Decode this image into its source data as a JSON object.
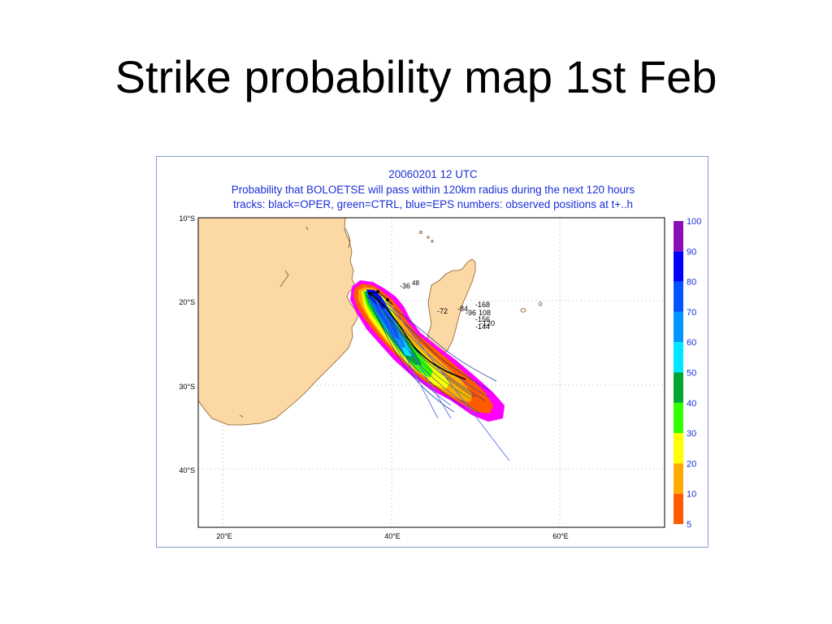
{
  "slide": {
    "title": "Strike probability map 1st Feb"
  },
  "map": {
    "date_line": "20060201 12 UTC",
    "description": "Probability that BOLOETSE will pass within 120km radius during the next 120 hours",
    "tracks_line": "tracks: black=OPER, green=CTRL, blue=EPS numbers: observed positions at t+..h",
    "lat_labels": [
      "10°S",
      "20°S",
      "30°S",
      "40°S"
    ],
    "lon_labels": [
      "20°E",
      "40°E",
      "60°E"
    ],
    "hour_labels": [
      "-36",
      "48",
      "-72",
      "-84",
      "-96",
      "108",
      "-168",
      "-156",
      "-144",
      "-120"
    ],
    "colors": {
      "land": "#fcd9a4",
      "coast": "#8a5a2b",
      "accent": "#1a2fd6"
    }
  },
  "legend": {
    "levels": [
      {
        "label": "100",
        "color": "#8a0fb8"
      },
      {
        "label": "90",
        "color": "#0000ff"
      },
      {
        "label": "80",
        "color": "#0055ff"
      },
      {
        "label": "70",
        "color": "#0096ff"
      },
      {
        "label": "60",
        "color": "#00e8ff"
      },
      {
        "label": "50",
        "color": "#00a532"
      },
      {
        "label": "40",
        "color": "#32ff00"
      },
      {
        "label": "30",
        "color": "#ffff00"
      },
      {
        "label": "20",
        "color": "#ffaa00"
      },
      {
        "label": "10",
        "color": "#ff5a00"
      },
      {
        "label": "5",
        "color": "#ff00ff"
      }
    ]
  }
}
